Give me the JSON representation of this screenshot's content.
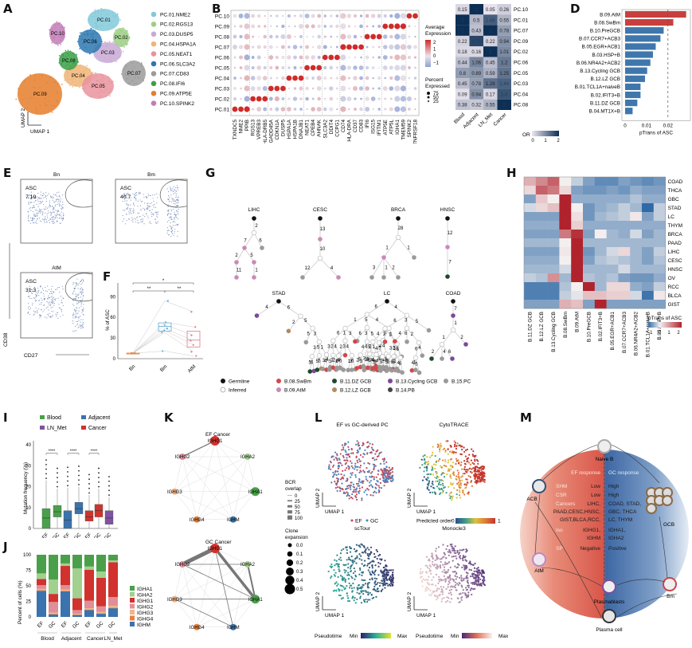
{
  "panel_labels": {
    "A": "A",
    "B": "B",
    "C": "C",
    "D": "D",
    "E": "E",
    "F": "F",
    "G": "G",
    "H": "H",
    "I": "I",
    "J": "J",
    "K": "K",
    "L": "L",
    "M": "M"
  },
  "colors": {
    "red": "#d1322e",
    "blue": "#3a73ad",
    "navy": "#0d2f54",
    "green": "#4aa04a",
    "purple": "#8052a0"
  },
  "chart_data": [
    {
      "id": "A",
      "type": "scatter",
      "title": "",
      "xlabel": "UMAP 1",
      "ylabel": "UMAP 2",
      "clusters": [
        {
          "name": "PC.01.NME2",
          "short": "PC.01",
          "color": "#83c9d9"
        },
        {
          "name": "PC.02.RGS13",
          "short": "PC.02",
          "color": "#9ccf84"
        },
        {
          "name": "PC.03.DUSP5",
          "short": "PC.03",
          "color": "#c9a9d6"
        },
        {
          "name": "PC.04.HSPA1A",
          "short": "PC.04",
          "color": "#efb577"
        },
        {
          "name": "PC.05.NEAT1",
          "short": "PC.05",
          "color": "#e9939c"
        },
        {
          "name": "PC.06.SLC3A2",
          "short": "PC.06",
          "color": "#2b78b0"
        },
        {
          "name": "PC.07.CD83",
          "short": "PC.07",
          "color": "#9b9b9b"
        },
        {
          "name": "PC.08.IFI6",
          "short": "PC.08",
          "color": "#3aa047"
        },
        {
          "name": "PC.09.ATP5E",
          "short": "PC.09",
          "color": "#e57e2b"
        },
        {
          "name": "PC.10.SPINK2",
          "short": "PC.10",
          "color": "#c27db7"
        }
      ]
    },
    {
      "id": "B",
      "type": "scatter",
      "subtype": "dotplot",
      "rows": [
        "PC.10",
        "PC.09",
        "PC.08",
        "PC.07",
        "PC.06",
        "PC.05",
        "PC.04",
        "PC.03",
        "PC.02",
        "PC.01"
      ],
      "genes": [
        "TXNDC5",
        "NME2",
        "PPIB",
        "RGS13",
        "VPREB3",
        "HLA-DRB5",
        "GADD45A",
        "CDKN1A",
        "DUSP5",
        "HSPA1A",
        "HSPA1B",
        "DNAJB1",
        "NEAT1",
        "CPEB4",
        "AHNAK",
        "SLC3A2",
        "DDIT4",
        "CCPG1",
        "CD74",
        "HLA-DRA",
        "CD37",
        "CD83",
        "IFI6",
        "ISG15",
        "IFITM1",
        "ATP5E",
        "ATP5L",
        "IGHA1",
        "TMEM59",
        "SPINK2",
        "TNFRSF18"
      ],
      "legend": {
        "color_title": "Average Expression",
        "color_ticks": [
          "2",
          "1",
          "0",
          "−1"
        ],
        "size_title": "Percent Expressed",
        "size_ticks": [
          "75",
          "50",
          "25"
        ]
      },
      "marker_blocks": {
        "PC.01": [
          0,
          1,
          2
        ],
        "PC.02": [
          3,
          4,
          5
        ],
        "PC.03": [
          6,
          7,
          8
        ],
        "PC.04": [
          9,
          10,
          11
        ],
        "PC.05": [
          12,
          13,
          14
        ],
        "PC.06": [
          15,
          16,
          17
        ],
        "PC.07": [
          18,
          19,
          20,
          21
        ],
        "PC.08": [
          22,
          23,
          24
        ],
        "PC.09": [
          25,
          26,
          27,
          28
        ],
        "PC.10": [
          29,
          30
        ]
      }
    },
    {
      "id": "C",
      "type": "heatmap",
      "title": "",
      "columns": [
        "Blood",
        "Adjacent",
        "LN_Met",
        "Cancer"
      ],
      "rows": [
        "PC.10",
        "PC.01",
        "PC.07",
        "PC.09",
        "PC.02",
        "PC.06",
        "PC.05",
        "PC.03",
        "PC.04",
        "PC.08"
      ],
      "values": [
        [
          0.15,
          2,
          0.05,
          0.26
        ],
        [
          2,
          0.5,
          1.48,
          0.55
        ],
        [
          2,
          0.43,
          2,
          0.78
        ],
        [
          0.22,
          1.75,
          0.22,
          0.94
        ],
        [
          0.18,
          0.16,
          2,
          1.01
        ],
        [
          0.44,
          1.06,
          0.45,
          1.2
        ],
        [
          0.8,
          0.89,
          0.59,
          1.25
        ],
        [
          0.45,
          0.78,
          1.28,
          1.44
        ],
        [
          0.09,
          0.94,
          0.17,
          1.6
        ],
        [
          0.38,
          0.32,
          0.55,
          2
        ]
      ],
      "legend": {
        "title": "OR",
        "ticks": [
          "0",
          "1",
          "2"
        ]
      }
    },
    {
      "id": "D",
      "type": "bar",
      "orientation": "horizontal",
      "xlabel": "pTrans of ASC",
      "categories": [
        "B.09.AtM",
        "B.08.SwBm",
        "B.10.PreGCB",
        "B.07.CCR7+ACB3",
        "B.05.EGR+ACB1",
        "B.03.HSP+B",
        "B.06.NR4A2+ACB2",
        "B.13.Cycling GCB",
        "B.12.LZ GCB",
        "B.01.TCL1A+naiveB",
        "B.02.IFIT3+B",
        "B.11.DZ GCB",
        "B.04.MT1X+B"
      ],
      "values": [
        0.0285,
        0.0225,
        0.018,
        0.0165,
        0.0143,
        0.013,
        0.0118,
        0.0103,
        0.0093,
        0.0072,
        0.0072,
        0.0057,
        0.0035
      ],
      "highlight": [
        true,
        true,
        false,
        false,
        false,
        false,
        false,
        false,
        false,
        false,
        false,
        false,
        false
      ],
      "xlim": [
        0,
        0.029
      ],
      "xticks": [
        "0",
        "0.01",
        "0.02"
      ],
      "reference_line": 0.02
    },
    {
      "id": "E",
      "type": "scatter",
      "subtype": "flow cytometry",
      "xlabel": "CD27",
      "ylabel": "CD38",
      "plots": [
        {
          "title": "Bn",
          "gate": "ASC",
          "value": "7.19"
        },
        {
          "title": "Bm",
          "gate": "ASC",
          "value": "40.7"
        },
        {
          "title": "AtM",
          "gate": "ASC",
          "value": "31.3"
        }
      ]
    },
    {
      "id": "F",
      "type": "box",
      "ylabel": "% of ASC",
      "categories": [
        "Bn",
        "Bm",
        "AtM"
      ],
      "ylim": [
        0,
        110
      ],
      "yticks": [
        "0",
        "30",
        "60",
        "90"
      ],
      "boxes": [
        {
          "q1": 8,
          "median": 8,
          "q3": 8
        },
        {
          "q1": 40,
          "median": 47,
          "q3": 52
        },
        {
          "q1": 17,
          "median": 27,
          "q3": 40
        }
      ],
      "points": {
        "Bn": [
          8,
          8,
          8,
          8,
          8,
          8,
          8
        ],
        "Bm": [
          84,
          53,
          49,
          44,
          41,
          38,
          11
        ],
        "AtM": [
          68,
          46,
          34,
          26,
          20,
          10,
          4
        ]
      },
      "significance": [
        {
          "pair": [
            "Bn",
            "Bm"
          ],
          "label": "**"
        },
        {
          "pair": [
            "Bm",
            "AtM"
          ],
          "label": "**"
        },
        {
          "pair": [
            "Bn",
            "AtM"
          ],
          "label": "*"
        }
      ]
    },
    {
      "id": "G",
      "type": "tree",
      "trees": [
        "LIHC",
        "CESC",
        "BRCA",
        "HNSC",
        "STAD",
        "LC",
        "COAD"
      ],
      "legend": [
        {
          "label": "Germline",
          "color": "#111111"
        },
        {
          "label": "Inferred",
          "color": "#ffffff"
        },
        {
          "label": "B.08.SwBm",
          "color": "#d0494b"
        },
        {
          "label": "B.09.AtM",
          "color": "#c98ab8"
        },
        {
          "label": "B.11.DZ GCB",
          "color": "#1d4a2a"
        },
        {
          "label": "B.12.LZ GCB",
          "color": "#b08a64"
        },
        {
          "label": "B.13.Cycling GCB",
          "color": "#7a4a98"
        },
        {
          "label": "B.14.PB",
          "color": "#444444"
        },
        {
          "label": "B.15.PC",
          "color": "#9a9a9a"
        }
      ]
    },
    {
      "id": "H",
      "type": "heatmap",
      "rows": [
        "COAD",
        "THCA",
        "GBC",
        "STAD",
        "LC",
        "THYM",
        "BRCA",
        "PAAD",
        "LIHC",
        "CESC",
        "HNSC",
        "OV",
        "RCC",
        "BLCA",
        "GIST"
      ],
      "columns": [
        "B.11.DZ GCB",
        "B.12.LZ GCB",
        "B.13.Cycling GCB",
        "B.08.SwBm",
        "B.09.AtM",
        "B.10.PreGCB",
        "B.02.IFIT3+B",
        "B.05.EGR+ACB1",
        "B.07.CCR7+ACB3",
        "B.06.NR4A2+ACB2",
        "B.01.TCL1A+naiveB",
        "B.03.HSP+B"
      ],
      "values": [
        [
          0.8,
          1.3,
          1.8,
          0,
          -0.3,
          -0.7,
          -0.9,
          -0.9,
          -0.7,
          -0.8,
          -0.9,
          -0.8
        ],
        [
          0.3,
          1.8,
          1.5,
          0.3,
          -0.7,
          -0.8,
          -0.8,
          -0.7,
          -0.8,
          -0.6,
          -0.7,
          -0.7
        ],
        [
          -0.7,
          0.5,
          0,
          2.6,
          -0.6,
          -0.6,
          -0.6,
          -0.6,
          -0.6,
          -0.4,
          -0.6,
          -0.6
        ],
        [
          -0.2,
          0.3,
          0.6,
          2.6,
          0,
          -0.8,
          -0.6,
          -0.5,
          -0.3,
          -0.5,
          -1.2,
          -0.3
        ],
        [
          -0.7,
          -0.7,
          -0.7,
          2.6,
          0.2,
          -0.8,
          -0.5,
          -0.4,
          -0.3,
          0.1,
          -0.7,
          -0.3
        ],
        [
          -0.6,
          -0.6,
          -0.6,
          2.6,
          0.4,
          -0.6,
          -0.6,
          -0.6,
          -0.6,
          -0.6,
          -0.6,
          -0.6
        ],
        [
          -0.7,
          -0.7,
          -0.7,
          1.5,
          2.4,
          -0.7,
          0,
          -0.5,
          -0.6,
          -0.2,
          -0.7,
          -0.5
        ],
        [
          -0.5,
          -0.5,
          -0.5,
          0,
          2.6,
          -0.5,
          -0.5,
          -0.5,
          -0.5,
          -0.5,
          -0.5,
          -0.5
        ],
        [
          -0.7,
          -0.7,
          -0.7,
          0.1,
          2.6,
          -0.8,
          -0.5,
          -0.2,
          0.3,
          -0.5,
          -0.7,
          -0.3
        ],
        [
          -0.6,
          -0.6,
          -0.6,
          0,
          2.6,
          -0.7,
          -0.4,
          -0.3,
          -0.4,
          -0.5,
          -0.7,
          -0.4
        ],
        [
          -0.5,
          -0.5,
          -0.5,
          -0.2,
          2.6,
          -0.5,
          -0.5,
          -0.5,
          -0.2,
          -0.5,
          -0.5,
          -0.5
        ],
        [
          -0.3,
          -0.4,
          1.2,
          -0.5,
          2.6,
          -0.4,
          -0.5,
          -0.4,
          -0.7,
          -0.8,
          -0.8,
          -0.6
        ],
        [
          -1.0,
          -1.0,
          -1.0,
          -0.4,
          0,
          2.6,
          -0.5,
          0.3,
          0.3,
          -0.6,
          -0.7,
          -0.3
        ],
        [
          -1.0,
          -1.0,
          -1.0,
          -0.3,
          -0.1,
          0.6,
          0.6,
          0.4,
          0.4,
          -0.2,
          -1.1,
          0.1
        ],
        [
          -0.7,
          -0.7,
          -0.7,
          0.8,
          0.6,
          -0.7,
          2.6,
          -0.7,
          -0.7,
          -0.7,
          -0.7,
          -0.7
        ]
      ],
      "legend": {
        "title": "pTrans of ASC",
        "ticks": [
          "−1",
          "0",
          "1",
          "2"
        ]
      }
    },
    {
      "id": "I",
      "type": "box",
      "ylabel": "Mutation frequency (%)",
      "categories": [
        "EF",
        "GC",
        "EF",
        "GC",
        "EF",
        "GC",
        "GC"
      ],
      "groups": [
        "Blood",
        "Blood",
        "Adjacent",
        "Adjacent",
        "Cancer",
        "Cancer",
        "LN_Met"
      ],
      "ylim": [
        0,
        42
      ],
      "yticks": [
        "0",
        "10",
        "20",
        "30",
        "40"
      ],
      "boxes": [
        {
          "lo": 0,
          "q1": 0,
          "median": 5,
          "q3": 9.5,
          "hi": 23
        },
        {
          "lo": 0,
          "q1": 5.5,
          "median": 8,
          "q3": 11,
          "hi": 19
        },
        {
          "lo": 0,
          "q1": 0,
          "median": 4,
          "q3": 8.5,
          "hi": 19.5
        },
        {
          "lo": 0,
          "q1": 7,
          "median": 9.5,
          "q3": 12.5,
          "hi": 20
        },
        {
          "lo": 0,
          "q1": 3.5,
          "median": 5.5,
          "q3": 8.5,
          "hi": 16
        },
        {
          "lo": 0,
          "q1": 5.5,
          "median": 8.5,
          "q3": 11.5,
          "hi": 19
        },
        {
          "lo": 0,
          "q1": 2,
          "median": 5,
          "q3": 8.5,
          "hi": 15
        }
      ],
      "legend": [
        "Blood",
        "Adjacent",
        "LN_Met",
        "Cancer"
      ],
      "legend_colors": [
        "#4aa04a",
        "#3a73ad",
        "#8052a0",
        "#d1322e"
      ],
      "significance": [
        "****",
        "****",
        "****"
      ]
    },
    {
      "id": "J",
      "type": "bar",
      "subtype": "stacked",
      "ylabel": "Percent of cells (%)",
      "categories": [
        "EF",
        "GC",
        "EF",
        "GC",
        "EF",
        "GC",
        "GC"
      ],
      "groups": [
        "Blood",
        "Blood",
        "Adjacent",
        "Adjacent",
        "Cancer",
        "Cancer",
        "LN_Met"
      ],
      "group_labels": [
        "Blood",
        "Adjacent",
        "Cancer",
        "LN_Met"
      ],
      "ylim": [
        0,
        100
      ],
      "yticks": [
        "0",
        "25",
        "50",
        "75",
        "100"
      ],
      "series": [
        {
          "name": "IGHM",
          "color": "#3a73ad",
          "values": [
            42,
            4,
            41,
            3,
            11,
            5,
            14
          ]
        },
        {
          "name": "IGHG4",
          "color": "#e8803a",
          "values": [
            1,
            1,
            1,
            1,
            1,
            1,
            1
          ]
        },
        {
          "name": "IGHG3",
          "color": "#f2b48a",
          "values": [
            2,
            2,
            2,
            1,
            2,
            2,
            3
          ]
        },
        {
          "name": "IGHG2",
          "color": "#e08e97",
          "values": [
            6,
            17,
            7,
            6,
            12,
            9,
            14
          ]
        },
        {
          "name": "IGHG1",
          "color": "#d1322e",
          "values": [
            10,
            13,
            31,
            19,
            50,
            46,
            56
          ]
        },
        {
          "name": "IGHA2",
          "color": "#a2d08f",
          "values": [
            9,
            23,
            4,
            48,
            5,
            10,
            3
          ]
        },
        {
          "name": "IGHA1",
          "color": "#4aa04a",
          "values": [
            30,
            40,
            14,
            22,
            19,
            27,
            9
          ]
        }
      ]
    },
    {
      "id": "K",
      "type": "network",
      "plots": [
        "EF  Cancer",
        "GC Cancer"
      ],
      "nodes": [
        {
          "label": "IGHG1",
          "color": "#d1322e"
        },
        {
          "label": "IGHA2",
          "color": "#a2d08f"
        },
        {
          "label": "IGHA1",
          "color": "#4aa04a"
        },
        {
          "label": "IGHM",
          "color": "#3a73ad"
        },
        {
          "label": "IGHG4",
          "color": "#e8803a"
        },
        {
          "label": "IGHG3",
          "color": "#f2b48a"
        },
        {
          "label": "IGHG2",
          "color": "#e08e97"
        }
      ],
      "legend": {
        "overlap_title": "BCR overlap",
        "overlap_ticks": [
          "0",
          "25",
          "50",
          "75",
          "100"
        ],
        "expansion_title": "Clone expansion",
        "expansion_ticks": [
          "0.0",
          "0.1",
          "0.2",
          "0.3",
          "0.4",
          "0.5"
        ]
      }
    },
    {
      "id": "L",
      "type": "scatter",
      "subtype": "UMAP panels",
      "plots": [
        "EF vs GC-derived PC",
        "CytoTRACE",
        "scTour",
        "Monocle3"
      ],
      "xlabel": "UMAP 1",
      "ylabel": "UMAP 2",
      "legend_ef_gc": [
        "EF",
        "GC"
      ],
      "cytotrace_legend": {
        "title": "Predicted order",
        "min": "0",
        "max": "1"
      },
      "pseudotime_legend": {
        "title": "Pseudotime",
        "min": "Min",
        "max": "Max"
      }
    }
  ],
  "panelA": {
    "umap1": "UMAP 1",
    "umap2": "UMAP 2"
  },
  "panelM": {
    "cells": {
      "naive": "Naive B",
      "acb": "ACB",
      "atm": "AtM",
      "gcb": "GCB",
      "bm": "Bm",
      "pb": "Plasmablasts",
      "pc": "Plasma cell"
    },
    "headers": {
      "ef": "EF response",
      "gc": "GC response"
    },
    "rows": [
      {
        "key": "SHM",
        "ef": "Low",
        "gc": "High"
      },
      {
        "key": "CSR",
        "ef": "Low",
        "gc": "High"
      },
      {
        "key": "Cancers",
        "ef": "LIHC,",
        "gc": "COAD, STAD,"
      },
      {
        "key": "",
        "ef": "PAAD,CESC,HNSC,",
        "gc": "GBC, THCA"
      },
      {
        "key": "",
        "ef": "GIST,BLCA,RCC,",
        "gc": "LC, THYM"
      },
      {
        "key": "Iso",
        "ef": "IGHG1,",
        "gc": "IGHA1,"
      },
      {
        "key": "",
        "ef": "IGHM",
        "gc": "IGHA2"
      },
      {
        "key": "SP",
        "ef": "Negative",
        "gc": "Positive"
      }
    ]
  }
}
